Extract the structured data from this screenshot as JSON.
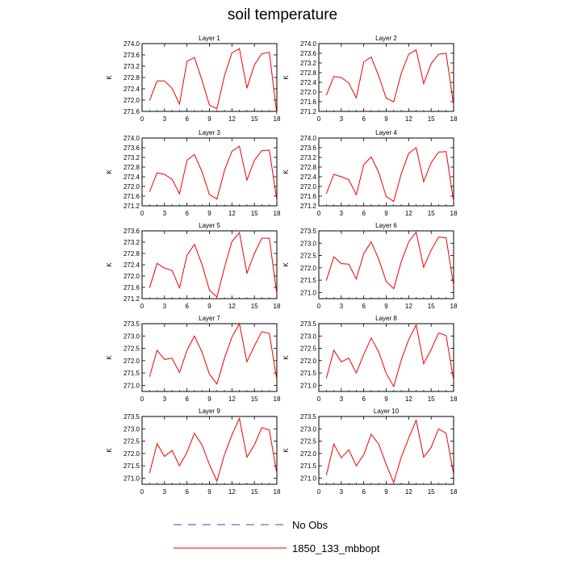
{
  "title": "soil temperature",
  "chart_data": [
    {
      "type": "line",
      "title": "Layer 1",
      "ylabel": "K",
      "xlim": [
        0,
        18
      ],
      "ylim": [
        271.6,
        274.0
      ],
      "xticks": [
        0,
        3,
        6,
        9,
        12,
        15,
        18
      ],
      "yticks": [
        "274.0",
        "273.6",
        "273.2",
        "272.8",
        "272.4",
        "272.0",
        "271.6"
      ],
      "series": [
        {
          "name": "1850_133_mbbopt",
          "x": [
            1,
            2,
            3,
            4,
            5,
            6,
            7,
            8,
            9,
            10,
            11,
            12,
            13,
            14,
            15,
            16,
            17,
            18
          ],
          "values": [
            271.98,
            272.68,
            272.68,
            272.42,
            271.86,
            273.37,
            273.51,
            272.71,
            271.82,
            271.7,
            272.86,
            273.67,
            273.82,
            272.42,
            273.25,
            273.64,
            273.69,
            271.5
          ]
        }
      ]
    },
    {
      "type": "line",
      "title": "Layer 2",
      "ylabel": "K",
      "xlim": [
        0,
        18
      ],
      "ylim": [
        271.2,
        274.0
      ],
      "xticks": [
        0,
        3,
        6,
        9,
        12,
        15,
        18
      ],
      "yticks": [
        "274.0",
        "273.6",
        "273.2",
        "272.8",
        "272.4",
        "272.0",
        "271.6",
        "271.2"
      ],
      "series": [
        {
          "name": "1850_133_mbbopt",
          "x": [
            1,
            2,
            3,
            4,
            5,
            6,
            7,
            8,
            9,
            10,
            11,
            12,
            13,
            14,
            15,
            16,
            17,
            18
          ],
          "values": [
            271.87,
            272.64,
            272.6,
            272.37,
            271.76,
            273.25,
            273.44,
            272.67,
            271.74,
            271.6,
            272.77,
            273.56,
            273.74,
            272.35,
            273.17,
            273.56,
            273.6,
            271.45
          ]
        }
      ]
    },
    {
      "type": "line",
      "title": "Layer 3",
      "ylabel": "K",
      "xlim": [
        0,
        18
      ],
      "ylim": [
        271.2,
        274.0
      ],
      "xticks": [
        0,
        3,
        6,
        9,
        12,
        15,
        18
      ],
      "yticks": [
        "274.0",
        "273.6",
        "273.2",
        "272.8",
        "272.4",
        "272.0",
        "271.6",
        "271.2"
      ],
      "series": [
        {
          "name": "1850_133_mbbopt",
          "x": [
            1,
            2,
            3,
            4,
            5,
            6,
            7,
            8,
            9,
            10,
            11,
            12,
            13,
            14,
            15,
            16,
            17,
            18
          ],
          "values": [
            271.78,
            272.56,
            272.5,
            272.3,
            271.7,
            273.08,
            273.32,
            272.62,
            271.66,
            271.48,
            272.66,
            273.45,
            273.66,
            272.26,
            273.08,
            273.48,
            273.5,
            271.42
          ]
        }
      ]
    },
    {
      "type": "line",
      "title": "Layer 4",
      "ylabel": "K",
      "xlim": [
        0,
        18
      ],
      "ylim": [
        271.2,
        274.0
      ],
      "xticks": [
        0,
        3,
        6,
        9,
        12,
        15,
        18
      ],
      "yticks": [
        "274.0",
        "273.6",
        "273.2",
        "272.8",
        "272.4",
        "272.0",
        "271.6",
        "271.2"
      ],
      "series": [
        {
          "name": "1850_133_mbbopt",
          "x": [
            1,
            2,
            3,
            4,
            5,
            6,
            7,
            8,
            9,
            10,
            11,
            12,
            13,
            14,
            15,
            16,
            17,
            18
          ],
          "values": [
            271.7,
            272.5,
            272.4,
            272.28,
            271.66,
            272.9,
            273.22,
            272.58,
            271.58,
            271.38,
            272.52,
            273.36,
            273.6,
            272.2,
            272.98,
            273.42,
            273.44,
            271.38
          ]
        }
      ]
    },
    {
      "type": "line",
      "title": "Layer 5",
      "ylabel": "K",
      "xlim": [
        0,
        18
      ],
      "ylim": [
        271.2,
        273.6
      ],
      "xticks": [
        0,
        3,
        6,
        9,
        12,
        15,
        18
      ],
      "yticks": [
        "273.6",
        "273.2",
        "272.8",
        "272.4",
        "272.0",
        "271.6",
        "271.2"
      ],
      "series": [
        {
          "name": "1850_133_mbbopt",
          "x": [
            1,
            2,
            3,
            4,
            5,
            6,
            7,
            8,
            9,
            10,
            11,
            12,
            13,
            14,
            15,
            16,
            17,
            18
          ],
          "values": [
            271.58,
            272.45,
            272.28,
            272.2,
            271.58,
            272.74,
            273.12,
            272.42,
            271.5,
            271.26,
            272.3,
            273.22,
            273.54,
            272.1,
            272.8,
            273.34,
            273.34,
            271.35
          ]
        }
      ]
    },
    {
      "type": "line",
      "title": "Layer 6",
      "ylabel": "K",
      "xlim": [
        0,
        18
      ],
      "ylim": [
        270.75,
        273.5
      ],
      "xticks": [
        0,
        3,
        6,
        9,
        12,
        15,
        18
      ],
      "yticks": [
        "273.5",
        "273.0",
        "272.5",
        "272.0",
        "271.5",
        "271.0"
      ],
      "series": [
        {
          "name": "1850_133_mbbopt",
          "x": [
            1,
            2,
            3,
            4,
            5,
            6,
            7,
            8,
            9,
            10,
            11,
            12,
            13,
            14,
            15,
            16,
            17,
            18
          ],
          "values": [
            271.48,
            272.45,
            272.17,
            272.15,
            271.55,
            272.58,
            273.05,
            272.35,
            271.45,
            271.15,
            272.25,
            273.05,
            273.45,
            272.02,
            272.72,
            273.25,
            273.22,
            271.28
          ]
        }
      ]
    },
    {
      "type": "line",
      "title": "Layer 7",
      "ylabel": "K",
      "xlim": [
        0,
        18
      ],
      "ylim": [
        270.75,
        273.5
      ],
      "xticks": [
        0,
        3,
        6,
        9,
        12,
        15,
        18
      ],
      "yticks": [
        "273.5",
        "273.0",
        "272.5",
        "272.0",
        "271.5",
        "271.0"
      ],
      "series": [
        {
          "name": "1850_133_mbbopt",
          "x": [
            1,
            2,
            3,
            4,
            5,
            6,
            7,
            8,
            9,
            10,
            11,
            12,
            13,
            14,
            15,
            16,
            17,
            18
          ],
          "values": [
            271.35,
            272.42,
            272.05,
            272.1,
            271.52,
            272.42,
            273.0,
            272.35,
            271.45,
            271.05,
            272.1,
            272.95,
            273.5,
            271.95,
            272.6,
            273.18,
            273.1,
            271.22
          ]
        }
      ]
    },
    {
      "type": "line",
      "title": "Layer 8",
      "ylabel": "K",
      "xlim": [
        0,
        18
      ],
      "ylim": [
        270.75,
        273.5
      ],
      "xticks": [
        0,
        3,
        6,
        9,
        12,
        15,
        18
      ],
      "yticks": [
        "273.5",
        "273.0",
        "272.5",
        "272.0",
        "271.5",
        "271.0"
      ],
      "series": [
        {
          "name": "1850_133_mbbopt",
          "x": [
            1,
            2,
            3,
            4,
            5,
            6,
            7,
            8,
            9,
            10,
            11,
            12,
            13,
            14,
            15,
            16,
            17,
            18
          ],
          "values": [
            271.28,
            272.42,
            271.95,
            272.1,
            271.5,
            272.25,
            272.92,
            272.35,
            271.48,
            270.95,
            272.02,
            272.85,
            273.45,
            271.88,
            272.45,
            273.12,
            273.02,
            271.2
          ]
        }
      ]
    },
    {
      "type": "line",
      "title": "Layer 9",
      "ylabel": "K",
      "xlim": [
        0,
        18
      ],
      "ylim": [
        270.75,
        273.5
      ],
      "xticks": [
        0,
        3,
        6,
        9,
        12,
        15,
        18
      ],
      "yticks": [
        "273.5",
        "273.0",
        "272.5",
        "272.0",
        "271.5",
        "271.0"
      ],
      "series": [
        {
          "name": "1850_133_mbbopt",
          "x": [
            1,
            2,
            3,
            4,
            5,
            6,
            7,
            8,
            9,
            10,
            11,
            12,
            13,
            14,
            15,
            16,
            17,
            18
          ],
          "values": [
            271.2,
            272.4,
            271.88,
            272.12,
            271.5,
            272.05,
            272.82,
            272.35,
            271.55,
            270.88,
            271.95,
            272.75,
            273.42,
            271.85,
            272.35,
            273.05,
            272.95,
            271.18
          ]
        }
      ]
    },
    {
      "type": "line",
      "title": "Layer 10",
      "ylabel": "K",
      "xlim": [
        0,
        18
      ],
      "ylim": [
        270.75,
        273.5
      ],
      "xticks": [
        0,
        3,
        6,
        9,
        12,
        15,
        18
      ],
      "yticks": [
        "273.5",
        "273.0",
        "272.5",
        "272.0",
        "271.5",
        "271.0"
      ],
      "series": [
        {
          "name": "1850_133_mbbopt",
          "x": [
            1,
            2,
            3,
            4,
            5,
            6,
            7,
            8,
            9,
            10,
            11,
            12,
            13,
            14,
            15,
            16,
            17,
            18
          ],
          "values": [
            271.12,
            272.38,
            271.82,
            272.15,
            271.5,
            271.95,
            272.78,
            272.38,
            271.55,
            270.82,
            271.85,
            272.62,
            273.35,
            271.85,
            272.25,
            273.0,
            272.82,
            271.15
          ]
        }
      ]
    }
  ],
  "legend": {
    "entries": [
      {
        "label": "No Obs",
        "color": "#4444aa",
        "style": "dashed"
      },
      {
        "label": "1850_133_mbbopt",
        "color": "#ee0000",
        "style": "solid"
      }
    ]
  }
}
